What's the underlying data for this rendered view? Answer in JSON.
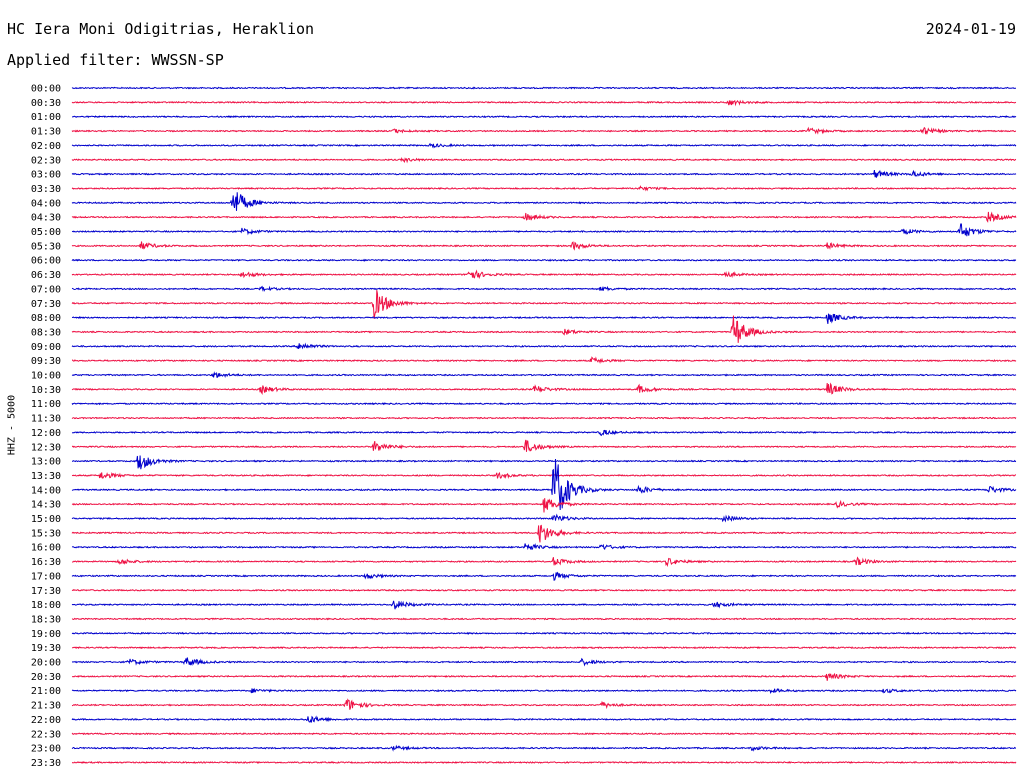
{
  "header": {
    "station": "HC Iera Moni Odigitrias, Heraklion",
    "date": "2024-01-19",
    "filter": "Applied filter: WWSSN-SP"
  },
  "axis": {
    "ylabel": "HHZ - 5000"
  },
  "colors": {
    "even_trace": "#0000cc",
    "odd_trace": "#ee1144",
    "text": "#000000"
  },
  "chart_data": {
    "type": "line",
    "title": "HC Iera Moni Odigitrias, Heraklion",
    "ylabel": "HHZ - 5000",
    "grid": false,
    "legend": "none",
    "rows": [
      {
        "time": "00:00",
        "color": "blue",
        "events": []
      },
      {
        "time": "00:30",
        "color": "red",
        "events": [
          {
            "x": 0.695,
            "amp": 3
          }
        ]
      },
      {
        "time": "01:00",
        "color": "blue",
        "events": []
      },
      {
        "time": "01:30",
        "color": "red",
        "events": [
          {
            "x": 0.34,
            "amp": 2
          },
          {
            "x": 0.78,
            "amp": 3
          },
          {
            "x": 0.9,
            "amp": 4
          }
        ]
      },
      {
        "time": "02:00",
        "color": "blue",
        "events": [
          {
            "x": 0.38,
            "amp": 2
          }
        ]
      },
      {
        "time": "02:30",
        "color": "red",
        "events": [
          {
            "x": 0.35,
            "amp": 2
          }
        ]
      },
      {
        "time": "03:00",
        "color": "blue",
        "events": [
          {
            "x": 0.85,
            "amp": 4
          },
          {
            "x": 0.89,
            "amp": 3
          }
        ]
      },
      {
        "time": "03:30",
        "color": "red",
        "events": [
          {
            "x": 0.6,
            "amp": 2
          }
        ]
      },
      {
        "time": "04:00",
        "color": "blue",
        "events": [
          {
            "x": 0.17,
            "amp": 16
          }
        ]
      },
      {
        "time": "04:30",
        "color": "red",
        "events": [
          {
            "x": 0.48,
            "amp": 4
          },
          {
            "x": 0.97,
            "amp": 5
          }
        ]
      },
      {
        "time": "05:00",
        "color": "blue",
        "events": [
          {
            "x": 0.18,
            "amp": 3
          },
          {
            "x": 0.88,
            "amp": 3
          },
          {
            "x": 0.94,
            "amp": 9
          }
        ]
      },
      {
        "time": "05:30",
        "color": "red",
        "events": [
          {
            "x": 0.073,
            "amp": 4
          },
          {
            "x": 0.53,
            "amp": 4
          },
          {
            "x": 0.8,
            "amp": 3
          }
        ]
      },
      {
        "time": "06:00",
        "color": "blue",
        "events": []
      },
      {
        "time": "06:30",
        "color": "red",
        "events": [
          {
            "x": 0.18,
            "amp": 3
          },
          {
            "x": 0.42,
            "amp": 6
          },
          {
            "x": 0.69,
            "amp": 3
          }
        ]
      },
      {
        "time": "07:00",
        "color": "blue",
        "events": [
          {
            "x": 0.2,
            "amp": 2
          },
          {
            "x": 0.56,
            "amp": 2
          }
        ]
      },
      {
        "time": "07:30",
        "color": "red",
        "events": [
          {
            "x": 0.32,
            "amp": 16
          }
        ]
      },
      {
        "time": "08:00",
        "color": "blue",
        "events": [
          {
            "x": 0.8,
            "amp": 6
          }
        ]
      },
      {
        "time": "08:30",
        "color": "red",
        "events": [
          {
            "x": 0.7,
            "amp": 18
          },
          {
            "x": 0.52,
            "amp": 3
          }
        ]
      },
      {
        "time": "09:00",
        "color": "blue",
        "events": [
          {
            "x": 0.24,
            "amp": 4
          }
        ]
      },
      {
        "time": "09:30",
        "color": "red",
        "events": [
          {
            "x": 0.55,
            "amp": 3
          }
        ]
      },
      {
        "time": "10:00",
        "color": "blue",
        "events": [
          {
            "x": 0.15,
            "amp": 3
          }
        ]
      },
      {
        "time": "10:30",
        "color": "red",
        "events": [
          {
            "x": 0.2,
            "amp": 4
          },
          {
            "x": 0.49,
            "amp": 4
          },
          {
            "x": 0.6,
            "amp": 4
          },
          {
            "x": 0.8,
            "amp": 7
          }
        ]
      },
      {
        "time": "11:00",
        "color": "blue",
        "events": []
      },
      {
        "time": "11:30",
        "color": "red",
        "events": []
      },
      {
        "time": "12:00",
        "color": "blue",
        "events": [
          {
            "x": 0.56,
            "amp": 3
          }
        ]
      },
      {
        "time": "12:30",
        "color": "red",
        "events": [
          {
            "x": 0.32,
            "amp": 6
          },
          {
            "x": 0.48,
            "amp": 7
          }
        ]
      },
      {
        "time": "13:00",
        "color": "blue",
        "events": [
          {
            "x": 0.07,
            "amp": 10
          }
        ]
      },
      {
        "time": "13:30",
        "color": "red",
        "events": [
          {
            "x": 0.03,
            "amp": 4
          },
          {
            "x": 0.45,
            "amp": 3
          }
        ]
      },
      {
        "time": "14:00",
        "color": "blue",
        "events": [
          {
            "x": 0.51,
            "amp": 40
          },
          {
            "x": 0.6,
            "amp": 4
          },
          {
            "x": 0.97,
            "amp": 4
          }
        ]
      },
      {
        "time": "14:30",
        "color": "red",
        "events": [
          {
            "x": 0.5,
            "amp": 8
          },
          {
            "x": 0.81,
            "amp": 3
          }
        ]
      },
      {
        "time": "15:00",
        "color": "blue",
        "events": [
          {
            "x": 0.51,
            "amp": 4
          },
          {
            "x": 0.69,
            "amp": 3
          }
        ]
      },
      {
        "time": "15:30",
        "color": "red",
        "events": [
          {
            "x": 0.495,
            "amp": 12
          }
        ]
      },
      {
        "time": "16:00",
        "color": "blue",
        "events": [
          {
            "x": 0.48,
            "amp": 4
          },
          {
            "x": 0.56,
            "amp": 3
          }
        ]
      },
      {
        "time": "16:30",
        "color": "red",
        "events": [
          {
            "x": 0.05,
            "amp": 3
          },
          {
            "x": 0.51,
            "amp": 4
          },
          {
            "x": 0.63,
            "amp": 4
          },
          {
            "x": 0.83,
            "amp": 4
          }
        ]
      },
      {
        "time": "17:00",
        "color": "blue",
        "events": [
          {
            "x": 0.31,
            "amp": 3
          },
          {
            "x": 0.51,
            "amp": 4
          }
        ]
      },
      {
        "time": "17:30",
        "color": "red",
        "events": []
      },
      {
        "time": "18:00",
        "color": "blue",
        "events": [
          {
            "x": 0.34,
            "amp": 5
          },
          {
            "x": 0.68,
            "amp": 3
          }
        ]
      },
      {
        "time": "18:30",
        "color": "red",
        "events": []
      },
      {
        "time": "19:00",
        "color": "blue",
        "events": []
      },
      {
        "time": "19:30",
        "color": "red",
        "events": []
      },
      {
        "time": "20:00",
        "color": "blue",
        "events": [
          {
            "x": 0.06,
            "amp": 3
          },
          {
            "x": 0.12,
            "amp": 5
          },
          {
            "x": 0.54,
            "amp": 3
          }
        ]
      },
      {
        "time": "20:30",
        "color": "red",
        "events": [
          {
            "x": 0.8,
            "amp": 4
          }
        ]
      },
      {
        "time": "21:00",
        "color": "blue",
        "events": [
          {
            "x": 0.19,
            "amp": 2
          },
          {
            "x": 0.74,
            "amp": 2
          },
          {
            "x": 0.86,
            "amp": 2
          }
        ]
      },
      {
        "time": "21:30",
        "color": "red",
        "events": [
          {
            "x": 0.29,
            "amp": 7
          },
          {
            "x": 0.56,
            "amp": 3
          }
        ]
      },
      {
        "time": "22:00",
        "color": "blue",
        "events": [
          {
            "x": 0.25,
            "amp": 4
          }
        ]
      },
      {
        "time": "22:30",
        "color": "red",
        "events": []
      },
      {
        "time": "23:00",
        "color": "blue",
        "events": [
          {
            "x": 0.34,
            "amp": 2
          },
          {
            "x": 0.72,
            "amp": 2
          }
        ]
      },
      {
        "time": "23:30",
        "color": "red",
        "events": []
      }
    ]
  }
}
